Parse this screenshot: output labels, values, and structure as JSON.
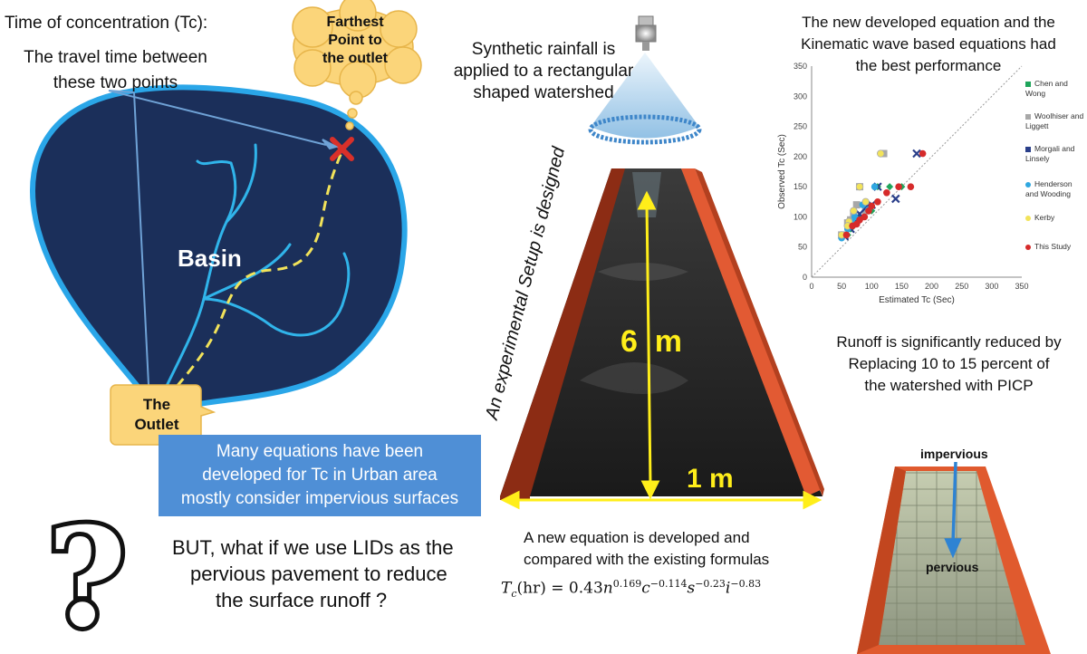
{
  "tc": {
    "title": "Time of concentration (Tc):",
    "travel_line1": "The travel time between",
    "travel_line2": "these two points"
  },
  "farthest": {
    "line1": "Farthest",
    "line2": "Point to",
    "line3": "the outlet"
  },
  "basin_label": "Basin",
  "outlet": {
    "line1": "The",
    "line2": "Outlet"
  },
  "rainfall": {
    "line1": "Synthetic rainfall is",
    "line2": "applied to a rectangular",
    "line3": "shaped watershed"
  },
  "setup_text": "An experimental Setup is designed",
  "flume": {
    "length_label": "6  m",
    "width_label": "1 m"
  },
  "equations_box": {
    "line1": "Many equations have been",
    "line2": "developed for Tc in Urban area",
    "line3": "mostly consider impervious surfaces"
  },
  "question_mark": "?",
  "lid": {
    "line1": "BUT, what if we use LIDs as the",
    "line2": "pervious pavement to reduce",
    "line3": "the surface runoff ?"
  },
  "new_eq": {
    "line1": "A new equation is developed and",
    "line2": "compared with the existing formulas"
  },
  "equation": {
    "lhs": "T",
    "lhs_sub": "c",
    "lhs_unit": "(hr) = 0.43",
    "n": "n",
    "n_exp": "0.169",
    "c": "c",
    "c_exp": "−0.114",
    "s": "s",
    "s_exp": "−0.23",
    "i": "i",
    "i_exp": "−0.83"
  },
  "performance": {
    "line1": "The new developed equation and the",
    "line2": "Kinematic wave based equations had",
    "line3": "the best performance"
  },
  "runoff": {
    "line1": "Runoff is significantly reduced by",
    "line2": "Replacing 10 to 15 percent of",
    "line3": "the watershed with PICP"
  },
  "pavement": {
    "top_label": "impervious",
    "bottom_label": "pervious"
  },
  "colors": {
    "basin_fill": "#1b2f5a",
    "basin_outline": "#2aa6e8",
    "stream": "#30b4ea",
    "flow_path": "#f2e35a",
    "callout": "#4f8fd6",
    "flume_wall": "#e25a33",
    "arrow_yellow": "#ffee1a",
    "cloud": "#fbd57a"
  },
  "chart_data": {
    "type": "scatter",
    "xlabel": "Estimated Tc (Sec)",
    "ylabel": "Observed Tc (Sec)",
    "xlim": [
      0,
      350
    ],
    "ylim": [
      0,
      350
    ],
    "x_ticks": [
      "0",
      "50",
      "100",
      "150",
      "200",
      "250",
      "300",
      "350"
    ],
    "y_ticks": [
      "0",
      "50",
      "100",
      "150",
      "200",
      "250",
      "300",
      "350"
    ],
    "reference_line": "1:1",
    "legend_position": "right",
    "series": [
      {
        "name": "Chen and Wong",
        "color": "#1fa55b",
        "marker": "diamond",
        "points": [
          [
            60,
            70
          ],
          [
            70,
            85
          ],
          [
            80,
            100
          ],
          [
            95,
            120
          ],
          [
            110,
            150
          ],
          [
            130,
            150
          ],
          [
            150,
            150
          ],
          [
            65,
            80
          ],
          [
            100,
            110
          ]
        ]
      },
      {
        "name": "Woolhiser and Liggett",
        "color": "#a8a8a8",
        "marker": "square",
        "points": [
          [
            50,
            70
          ],
          [
            60,
            90
          ],
          [
            70,
            105
          ],
          [
            75,
            120
          ],
          [
            80,
            150
          ],
          [
            120,
            205
          ],
          [
            90,
            110
          ],
          [
            65,
            95
          ]
        ]
      },
      {
        "name": "Morgali and Linsely",
        "color": "#2a3f8a",
        "marker": "x",
        "points": [
          [
            55,
            68
          ],
          [
            65,
            80
          ],
          [
            75,
            95
          ],
          [
            90,
            115
          ],
          [
            110,
            150
          ],
          [
            140,
            130
          ],
          [
            175,
            205
          ],
          [
            100,
            120
          ],
          [
            80,
            105
          ]
        ]
      },
      {
        "name": "Henderson and Wooding",
        "color": "#2fa7e0",
        "marker": "circle",
        "points": [
          [
            50,
            65
          ],
          [
            60,
            80
          ],
          [
            72,
            100
          ],
          [
            85,
            120
          ],
          [
            105,
            150
          ],
          [
            115,
            205
          ],
          [
            95,
            112
          ],
          [
            68,
            90
          ]
        ]
      },
      {
        "name": "Kerby",
        "color": "#f2e35a",
        "marker": "circle",
        "points": [
          [
            50,
            70
          ],
          [
            62,
            92
          ],
          [
            70,
            110
          ],
          [
            80,
            150
          ],
          [
            115,
            205
          ],
          [
            90,
            125
          ],
          [
            60,
            85
          ]
        ]
      },
      {
        "name": "This Study",
        "color": "#d62b2b",
        "marker": "circle",
        "points": [
          [
            58,
            70
          ],
          [
            68,
            85
          ],
          [
            80,
            95
          ],
          [
            95,
            110
          ],
          [
            110,
            125
          ],
          [
            125,
            140
          ],
          [
            145,
            150
          ],
          [
            165,
            150
          ],
          [
            185,
            205
          ],
          [
            100,
            118
          ],
          [
            88,
            100
          ],
          [
            75,
            88
          ]
        ]
      }
    ]
  }
}
